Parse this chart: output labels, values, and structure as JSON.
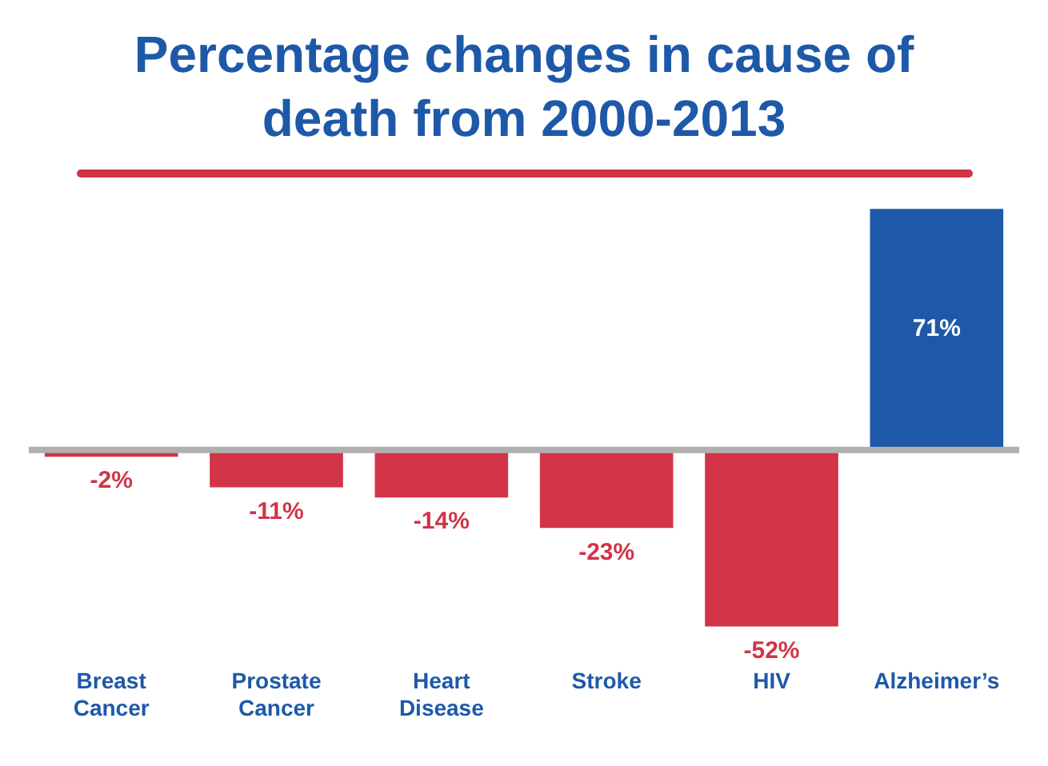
{
  "chart_data": {
    "type": "bar",
    "title": "Percentage changes in cause of death from 2000-2013",
    "categories": [
      "Breast Cancer",
      "Prostate Cancer",
      "Heart Disease",
      "Stroke",
      "HIV",
      "Alzheimer’s"
    ],
    "values": [
      -2,
      -11,
      -14,
      -23,
      -52,
      71
    ],
    "colors": [
      "#d13447",
      "#d13447",
      "#d13447",
      "#d13447",
      "#d13447",
      "#1d59a8"
    ],
    "value_labels": [
      "-2%",
      "-11%",
      "-14%",
      "-23%",
      "-52%",
      "71%"
    ],
    "grid": false,
    "legend": false
  }
}
